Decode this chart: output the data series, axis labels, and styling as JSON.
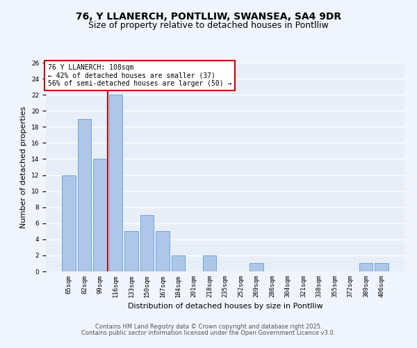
{
  "title1": "76, Y LLANERCH, PONTLLIW, SWANSEA, SA4 9DR",
  "title2": "Size of property relative to detached houses in Pontlliw",
  "xlabel": "Distribution of detached houses by size in Pontlliw",
  "ylabel": "Number of detached properties",
  "categories": [
    "65sqm",
    "82sqm",
    "99sqm",
    "116sqm",
    "133sqm",
    "150sqm",
    "167sqm",
    "184sqm",
    "201sqm",
    "218sqm",
    "235sqm",
    "252sqm",
    "269sqm",
    "286sqm",
    "304sqm",
    "321sqm",
    "338sqm",
    "355sqm",
    "372sqm",
    "389sqm",
    "406sqm"
  ],
  "values": [
    12,
    19,
    14,
    22,
    5,
    7,
    5,
    2,
    0,
    2,
    0,
    0,
    1,
    0,
    0,
    0,
    0,
    0,
    0,
    1,
    1
  ],
  "bar_color": "#aec6e8",
  "bar_edge_color": "#5a9fd4",
  "bg_color": "#e8eef8",
  "grid_color": "#ffffff",
  "annotation_line1": "76 Y LLANERCH: 108sqm",
  "annotation_line2": "← 42% of detached houses are smaller (37)",
  "annotation_line3": "56% of semi-detached houses are larger (50) →",
  "annotation_box_color": "#cc0000",
  "vline_x_index": 2.5,
  "vline_color": "#cc0000",
  "ylim": [
    0,
    26
  ],
  "yticks": [
    0,
    2,
    4,
    6,
    8,
    10,
    12,
    14,
    16,
    18,
    20,
    22,
    24,
    26
  ],
  "footer1": "Contains HM Land Registry data © Crown copyright and database right 2025.",
  "footer2": "Contains public sector information licensed under the Open Government Licence v3.0.",
  "title_fontsize": 10,
  "subtitle_fontsize": 9,
  "axis_label_fontsize": 8,
  "tick_fontsize": 6.5,
  "annotation_fontsize": 7,
  "footer_fontsize": 6
}
